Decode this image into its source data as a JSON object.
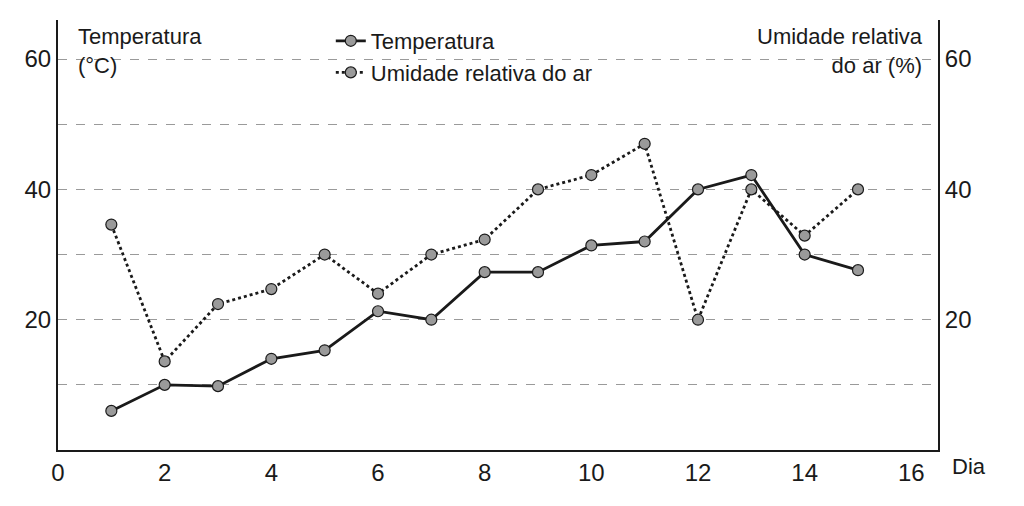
{
  "chart_data": {
    "type": "line",
    "x": [
      1,
      2,
      3,
      4,
      5,
      6,
      7,
      8,
      9,
      10,
      11,
      12,
      13,
      14,
      15
    ],
    "series": [
      {
        "name": "Temperatura",
        "color": "#1a1a1a",
        "marker": "circle",
        "line_style": "solid",
        "values": [
          6,
          10,
          9.8,
          14,
          15.3,
          21.3,
          20,
          27.3,
          27.3,
          31.4,
          32,
          40,
          42.2,
          30,
          27.6
        ]
      },
      {
        "name": "Umidade relativa do ar",
        "color": "#1a1a1a",
        "marker": "circle",
        "line_style": "dotted",
        "axis": "y2",
        "values": [
          34.6,
          13.6,
          22.4,
          24.7,
          30,
          24,
          30,
          32.3,
          40,
          42.2,
          47,
          20,
          40,
          32.9,
          40
        ]
      }
    ],
    "xlabel": "Dia",
    "ylabel": "Temperatura\n(°C)",
    "y2label": "Umidade relativa\ndo ar (%)",
    "xlim": [
      0,
      16.5
    ],
    "xticks": [
      0,
      2,
      4,
      6,
      8,
      10,
      12,
      14,
      16
    ],
    "ylim": [
      0,
      66
    ],
    "yticks": [
      20,
      40,
      60
    ],
    "y2lim": [
      0,
      66
    ],
    "y2ticks": [
      20,
      40,
      60
    ],
    "grid": true,
    "legend": "top"
  }
}
